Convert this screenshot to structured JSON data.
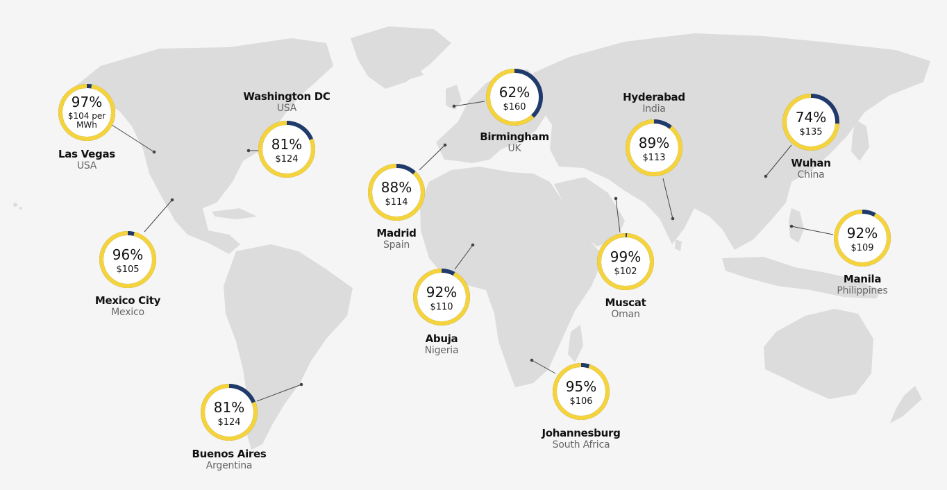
{
  "colors": {
    "background": "#f5f5f5",
    "land": "#dcdcdc",
    "ring_main": "#f5d33c",
    "ring_rest": "#1f3a6b",
    "ring_inner": "#ffffff",
    "connector": "#444444"
  },
  "cities": [
    {
      "id": "las-vegas",
      "name": "Las Vegas",
      "country": "USA",
      "percent": 97,
      "percent_label": "97%",
      "price_label": "$104 per MWh"
    },
    {
      "id": "washington-dc",
      "name": "Washington DC",
      "country": "USA",
      "percent": 81,
      "percent_label": "81%",
      "price_label": "$124"
    },
    {
      "id": "mexico-city",
      "name": "Mexico City",
      "country": "Mexico",
      "percent": 96,
      "percent_label": "96%",
      "price_label": "$105"
    },
    {
      "id": "buenos-aires",
      "name": "Buenos Aires",
      "country": "Argentina",
      "percent": 81,
      "percent_label": "81%",
      "price_label": "$124"
    },
    {
      "id": "birmingham",
      "name": "Birmingham",
      "country": "UK",
      "percent": 62,
      "percent_label": "62%",
      "price_label": "$160"
    },
    {
      "id": "madrid",
      "name": "Madrid",
      "country": "Spain",
      "percent": 88,
      "percent_label": "88%",
      "price_label": "$114"
    },
    {
      "id": "abuja",
      "name": "Abuja",
      "country": "Nigeria",
      "percent": 92,
      "percent_label": "92%",
      "price_label": "$110"
    },
    {
      "id": "johannesburg",
      "name": "Johannesburg",
      "country": "South Africa",
      "percent": 95,
      "percent_label": "95%",
      "price_label": "$106"
    },
    {
      "id": "muscat",
      "name": "Muscat",
      "country": "Oman",
      "percent": 99,
      "percent_label": "99%",
      "price_label": "$102"
    },
    {
      "id": "hyderabad",
      "name": "Hyderabad",
      "country": "India",
      "percent": 89,
      "percent_label": "89%",
      "price_label": "$113"
    },
    {
      "id": "wuhan",
      "name": "Wuhan",
      "country": "China",
      "percent": 74,
      "percent_label": "74%",
      "price_label": "$135"
    },
    {
      "id": "manila",
      "name": "Manila",
      "country": "Philippines",
      "percent": 92,
      "percent_label": "92%",
      "price_label": "$109"
    }
  ]
}
